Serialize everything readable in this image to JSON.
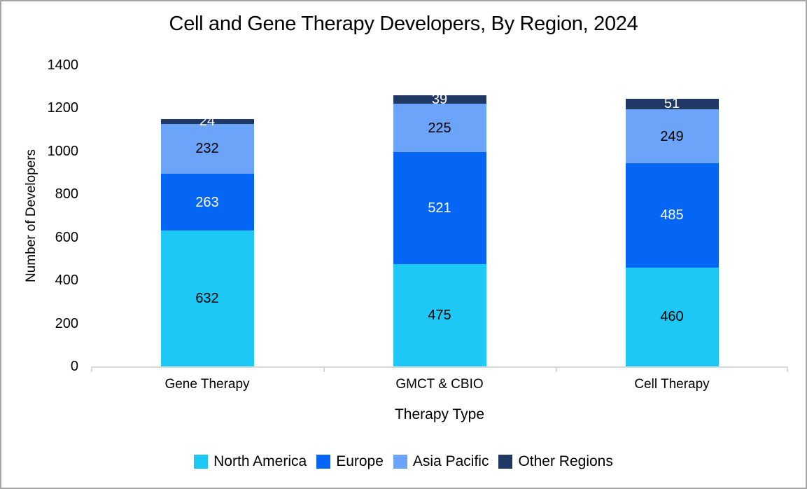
{
  "chart_data": {
    "type": "bar",
    "stacked": true,
    "title": "Cell and Gene Therapy Developers, By Region, 2024",
    "xlabel": "Therapy Type",
    "ylabel": "Number of Developers",
    "categories": [
      "Gene Therapy",
      "GMCT & CBIO",
      "Cell Therapy"
    ],
    "series": [
      {
        "name": "North America",
        "color": "#1EC8F5",
        "label_color": "#000000",
        "values": [
          632,
          475,
          460
        ]
      },
      {
        "name": "Europe",
        "color": "#0566F5",
        "label_color": "#FFFFFF",
        "values": [
          263,
          521,
          485
        ]
      },
      {
        "name": "Asia Pacific",
        "color": "#6BA4F8",
        "label_color": "#000000",
        "values": [
          232,
          225,
          249
        ]
      },
      {
        "name": "Other Regions",
        "color": "#1F3864",
        "label_color": "#FFFFFF",
        "values": [
          24,
          39,
          51
        ]
      }
    ],
    "totals": [
      1151,
      1260,
      1245
    ],
    "y_ticks": [
      0,
      200,
      400,
      600,
      800,
      1000,
      1200,
      1400
    ],
    "ylim": [
      0,
      1400
    ],
    "grid": false,
    "legend_position": "bottom",
    "axis_color": "#D9D9D9",
    "border_color": "#A6A6A6"
  }
}
